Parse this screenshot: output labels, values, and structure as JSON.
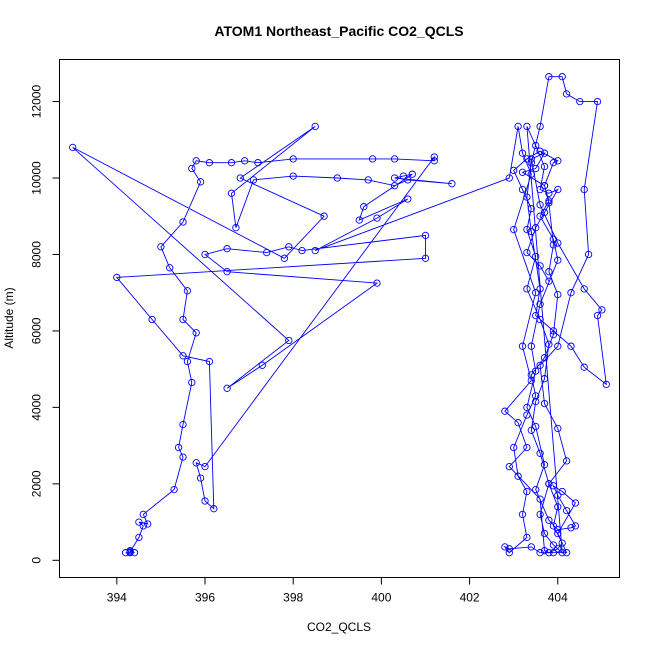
{
  "chart_data": {
    "type": "line",
    "title": "ATOM1 Northeast_Pacific CO2_QCLS",
    "xlabel": "CO2_QCLS",
    "ylabel": "Altitude (m)",
    "xlim": [
      392.7,
      405.4
    ],
    "ylim": [
      -450,
      13100
    ],
    "xticks": [
      394,
      396,
      398,
      400,
      402,
      404
    ],
    "yticks": [
      0,
      2000,
      4000,
      6000,
      8000,
      10000,
      12000
    ],
    "grid": false,
    "legend": "none",
    "series": [
      {
        "color": "#0000ff",
        "marker": "open-circle",
        "points": [
          [
            394.2,
            200
          ],
          [
            394.3,
            200
          ],
          [
            394.3,
            250
          ],
          [
            394.4,
            200
          ],
          [
            394.3,
            220
          ],
          [
            394.5,
            600
          ],
          [
            394.6,
            900
          ],
          [
            394.5,
            1000
          ],
          [
            394.7,
            950
          ],
          [
            394.6,
            1200
          ],
          [
            395.3,
            1850
          ],
          [
            395.5,
            2700
          ],
          [
            395.4,
            2950
          ],
          [
            395.5,
            3550
          ],
          [
            395.7,
            4650
          ],
          [
            395.6,
            5200
          ],
          [
            395.8,
            5950
          ],
          [
            395.5,
            6300
          ],
          [
            395.6,
            7050
          ],
          [
            395.2,
            7650
          ],
          [
            395.0,
            8200
          ],
          [
            395.5,
            8850
          ],
          [
            395.9,
            9900
          ],
          [
            395.7,
            10250
          ],
          [
            395.8,
            10450
          ],
          [
            396.1,
            10400
          ],
          [
            396.6,
            10400
          ],
          [
            396.9,
            10450
          ],
          [
            397.2,
            10400
          ],
          [
            398.0,
            10500
          ],
          [
            399.8,
            10500
          ],
          [
            400.3,
            10500
          ],
          [
            401.2,
            10450
          ],
          [
            401.2,
            10550
          ],
          [
            396.0,
            2450
          ],
          [
            395.8,
            2550
          ],
          [
            395.9,
            2150
          ],
          [
            396.0,
            1550
          ],
          [
            396.2,
            1350
          ],
          [
            396.1,
            5200
          ],
          [
            395.5,
            5350
          ],
          [
            394.8,
            6300
          ],
          [
            394.0,
            7400
          ],
          [
            401.0,
            7900
          ],
          [
            401.0,
            8500
          ],
          [
            398.2,
            8100
          ],
          [
            397.9,
            8200
          ],
          [
            397.4,
            8050
          ],
          [
            396.5,
            8150
          ],
          [
            396.0,
            8000
          ],
          [
            396.5,
            7550
          ],
          [
            399.9,
            7250
          ],
          [
            397.3,
            5100
          ],
          [
            396.5,
            4500
          ],
          [
            397.9,
            5750
          ],
          [
            393.0,
            10800
          ],
          [
            397.8,
            7900
          ],
          [
            398.7,
            9000
          ],
          [
            396.8,
            10000
          ],
          [
            398.5,
            11350
          ],
          [
            396.6,
            9600
          ],
          [
            396.7,
            8700
          ],
          [
            397.1,
            9950
          ],
          [
            398.0,
            10050
          ],
          [
            399.0,
            10000
          ],
          [
            399.7,
            9950
          ],
          [
            400.3,
            9800
          ],
          [
            400.6,
            9950
          ],
          [
            401.6,
            9850
          ],
          [
            400.3,
            10000
          ],
          [
            400.5,
            10050
          ],
          [
            400.7,
            10100
          ],
          [
            399.6,
            9250
          ],
          [
            399.5,
            8900
          ],
          [
            400.6,
            9450
          ],
          [
            399.9,
            8950
          ],
          [
            398.5,
            8100
          ],
          [
            402.9,
            10000
          ],
          [
            403.1,
            11350
          ],
          [
            403.2,
            10650
          ],
          [
            403.4,
            10100
          ],
          [
            403.0,
            8650
          ],
          [
            403.5,
            7000
          ],
          [
            403.2,
            5600
          ],
          [
            403.4,
            4700
          ],
          [
            402.8,
            3900
          ],
          [
            403.1,
            3600
          ],
          [
            403.3,
            2950
          ],
          [
            402.9,
            2450
          ],
          [
            403.6,
            1600
          ],
          [
            403.7,
            250
          ],
          [
            403.8,
            200
          ],
          [
            404.0,
            300
          ],
          [
            404.1,
            450
          ],
          [
            403.9,
            900
          ],
          [
            404.0,
            1400
          ],
          [
            403.8,
            2000
          ],
          [
            404.2,
            2600
          ],
          [
            404.0,
            3450
          ],
          [
            403.7,
            4100
          ],
          [
            403.6,
            5100
          ],
          [
            404.0,
            5600
          ],
          [
            404.3,
            7000
          ],
          [
            404.7,
            8000
          ],
          [
            404.6,
            9700
          ],
          [
            404.9,
            12000
          ],
          [
            404.5,
            12000
          ],
          [
            404.2,
            12200
          ],
          [
            404.1,
            12650
          ],
          [
            403.8,
            12650
          ],
          [
            403.6,
            11350
          ],
          [
            403.4,
            10400
          ],
          [
            403.3,
            9500
          ],
          [
            403.4,
            8600
          ],
          [
            403.6,
            7100
          ],
          [
            403.5,
            6400
          ],
          [
            403.9,
            6000
          ],
          [
            404.3,
            5600
          ],
          [
            404.6,
            5050
          ],
          [
            405.1,
            4600
          ],
          [
            404.9,
            6400
          ],
          [
            405.0,
            6550
          ],
          [
            404.6,
            7100
          ],
          [
            404.0,
            8300
          ],
          [
            403.6,
            9300
          ],
          [
            403.4,
            10500
          ],
          [
            403.7,
            10650
          ],
          [
            403.5,
            10250
          ],
          [
            403.2,
            10150
          ],
          [
            403.7,
            9800
          ],
          [
            403.8,
            9400
          ],
          [
            403.6,
            9000
          ],
          [
            403.9,
            8400
          ],
          [
            404.0,
            7850
          ],
          [
            403.6,
            6700
          ],
          [
            403.4,
            5600
          ],
          [
            403.5,
            4950
          ],
          [
            403.3,
            4000
          ],
          [
            403.5,
            3500
          ],
          [
            403.7,
            2500
          ],
          [
            403.5,
            1850
          ],
          [
            403.8,
            1050
          ],
          [
            404.0,
            800
          ],
          [
            404.3,
            850
          ],
          [
            404.4,
            900
          ],
          [
            404.2,
            1300
          ],
          [
            404.0,
            1700
          ],
          [
            403.9,
            1950
          ],
          [
            404.1,
            1800
          ],
          [
            404.4,
            1500
          ],
          [
            404.0,
            700
          ],
          [
            404.2,
            200
          ],
          [
            403.9,
            200
          ],
          [
            403.6,
            200
          ],
          [
            403.4,
            350
          ],
          [
            402.9,
            300
          ],
          [
            402.8,
            350
          ],
          [
            402.9,
            200
          ],
          [
            403.3,
            600
          ],
          [
            403.2,
            1200
          ],
          [
            403.3,
            1800
          ],
          [
            403.1,
            2200
          ],
          [
            403.0,
            2950
          ],
          [
            403.3,
            3800
          ],
          [
            403.5,
            4300
          ],
          [
            403.4,
            4850
          ],
          [
            403.7,
            5300
          ],
          [
            403.9,
            5900
          ],
          [
            404.0,
            6950
          ],
          [
            403.8,
            7550
          ],
          [
            403.9,
            8250
          ],
          [
            403.8,
            9350
          ],
          [
            403.7,
            9800
          ],
          [
            403.9,
            10400
          ],
          [
            404.0,
            10450
          ],
          [
            403.6,
            10700
          ],
          [
            403.3,
            10500
          ],
          [
            403.0,
            10200
          ],
          [
            403.2,
            9700
          ],
          [
            403.4,
            9200
          ],
          [
            403.3,
            8650
          ],
          [
            403.5,
            7950
          ],
          [
            403.3,
            7100
          ],
          [
            403.6,
            6300
          ],
          [
            403.8,
            5650
          ],
          [
            403.7,
            4750
          ],
          [
            403.5,
            4150
          ],
          [
            403.4,
            3400
          ],
          [
            403.6,
            2800
          ],
          [
            403.8,
            2000
          ],
          [
            403.6,
            1200
          ],
          [
            403.7,
            700
          ],
          [
            403.9,
            400
          ],
          [
            404.1,
            200
          ],
          [
            403.3,
            11350
          ],
          [
            403.5,
            10850
          ],
          [
            403.7,
            10300
          ],
          [
            403.6,
            9700
          ],
          [
            403.8,
            9600
          ],
          [
            404.0,
            9700
          ],
          [
            403.7,
            9100
          ],
          [
            403.5,
            8700
          ],
          [
            403.3,
            8050
          ],
          [
            403.6,
            7700
          ],
          [
            403.8,
            7300
          ]
        ]
      }
    ]
  }
}
